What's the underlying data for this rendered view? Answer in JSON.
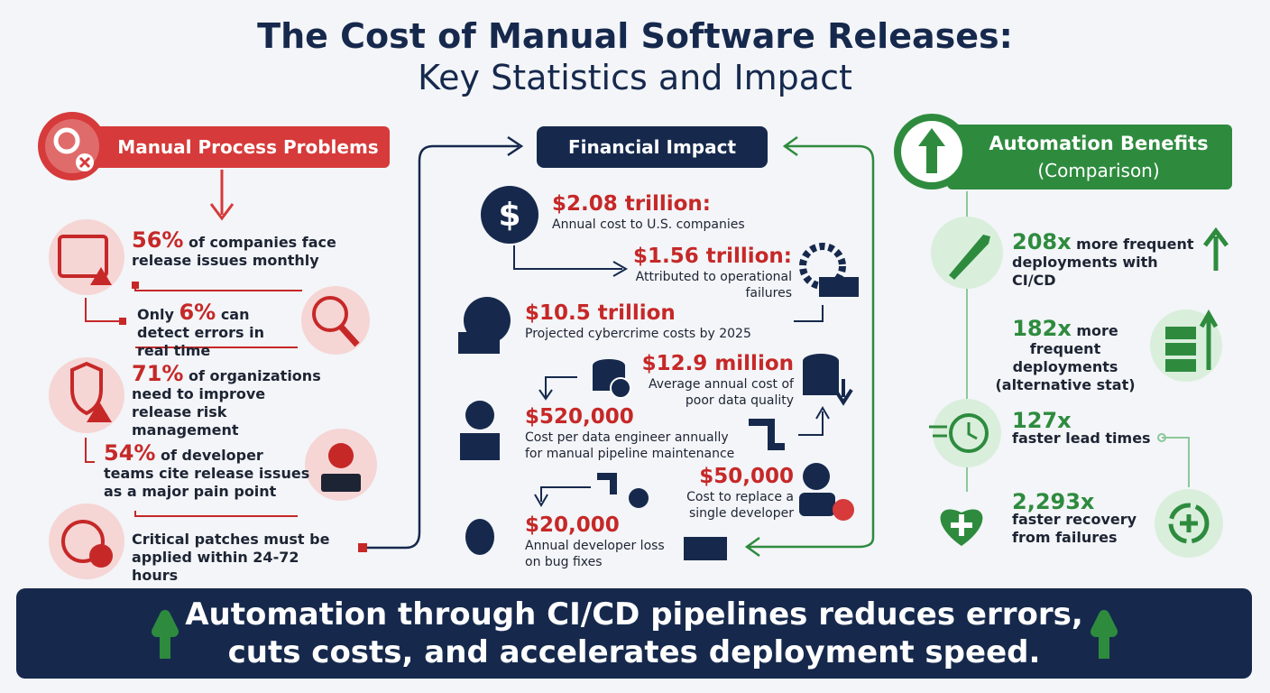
{
  "title": {
    "line1": "The Cost of Manual Software Releases:",
    "line2": "Key Statistics and Impact"
  },
  "problems": {
    "heading": "Manual Process Problems",
    "items": [
      {
        "stat": "56%",
        "text": "of companies face release issues monthly"
      },
      {
        "prefix": "Only",
        "stat": "6%",
        "text": "can detect errors in real time"
      },
      {
        "stat": "71%",
        "text": "of organizations need to improve release risk management"
      },
      {
        "stat": "54%",
        "text": "of developer teams cite release issues as a major pain point"
      },
      {
        "text": "Critical patches must be applied within 24-72 hours"
      }
    ]
  },
  "financial": {
    "heading": "Financial Impact",
    "items": [
      {
        "amount": "$2.08 trillion:",
        "text": "Annual cost to U.S. companies"
      },
      {
        "amount": "$1.56 trillion:",
        "text": "Attributed to operational failures"
      },
      {
        "amount": "$10.5 trillion",
        "text": "Projected cybercrime costs by 2025"
      },
      {
        "amount": "$12.9 million",
        "text": "Average annual cost of poor data quality"
      },
      {
        "amount": "$520,000",
        "text": "Cost per data engineer annually for manual pipeline maintenance"
      },
      {
        "amount": "$50,000",
        "text": "Cost to replace a single developer"
      },
      {
        "amount": "$20,000",
        "text": "Annual developer loss on bug fixes"
      }
    ]
  },
  "benefits": {
    "heading": "Automation Benefits",
    "subheading": "(Comparison)",
    "items": [
      {
        "multiplier": "208x",
        "text": "more frequent deployments with CI/CD"
      },
      {
        "multiplier": "182x",
        "text": "more frequent deployments (alternative stat)"
      },
      {
        "multiplier": "127x",
        "text": "faster lead times"
      },
      {
        "multiplier": "2,293x",
        "text": "faster recovery from failures"
      }
    ]
  },
  "footer": {
    "line1": "Automation through CI/CD pipelines reduces errors,",
    "line2": "cuts costs, and accelerates deployment speed."
  }
}
